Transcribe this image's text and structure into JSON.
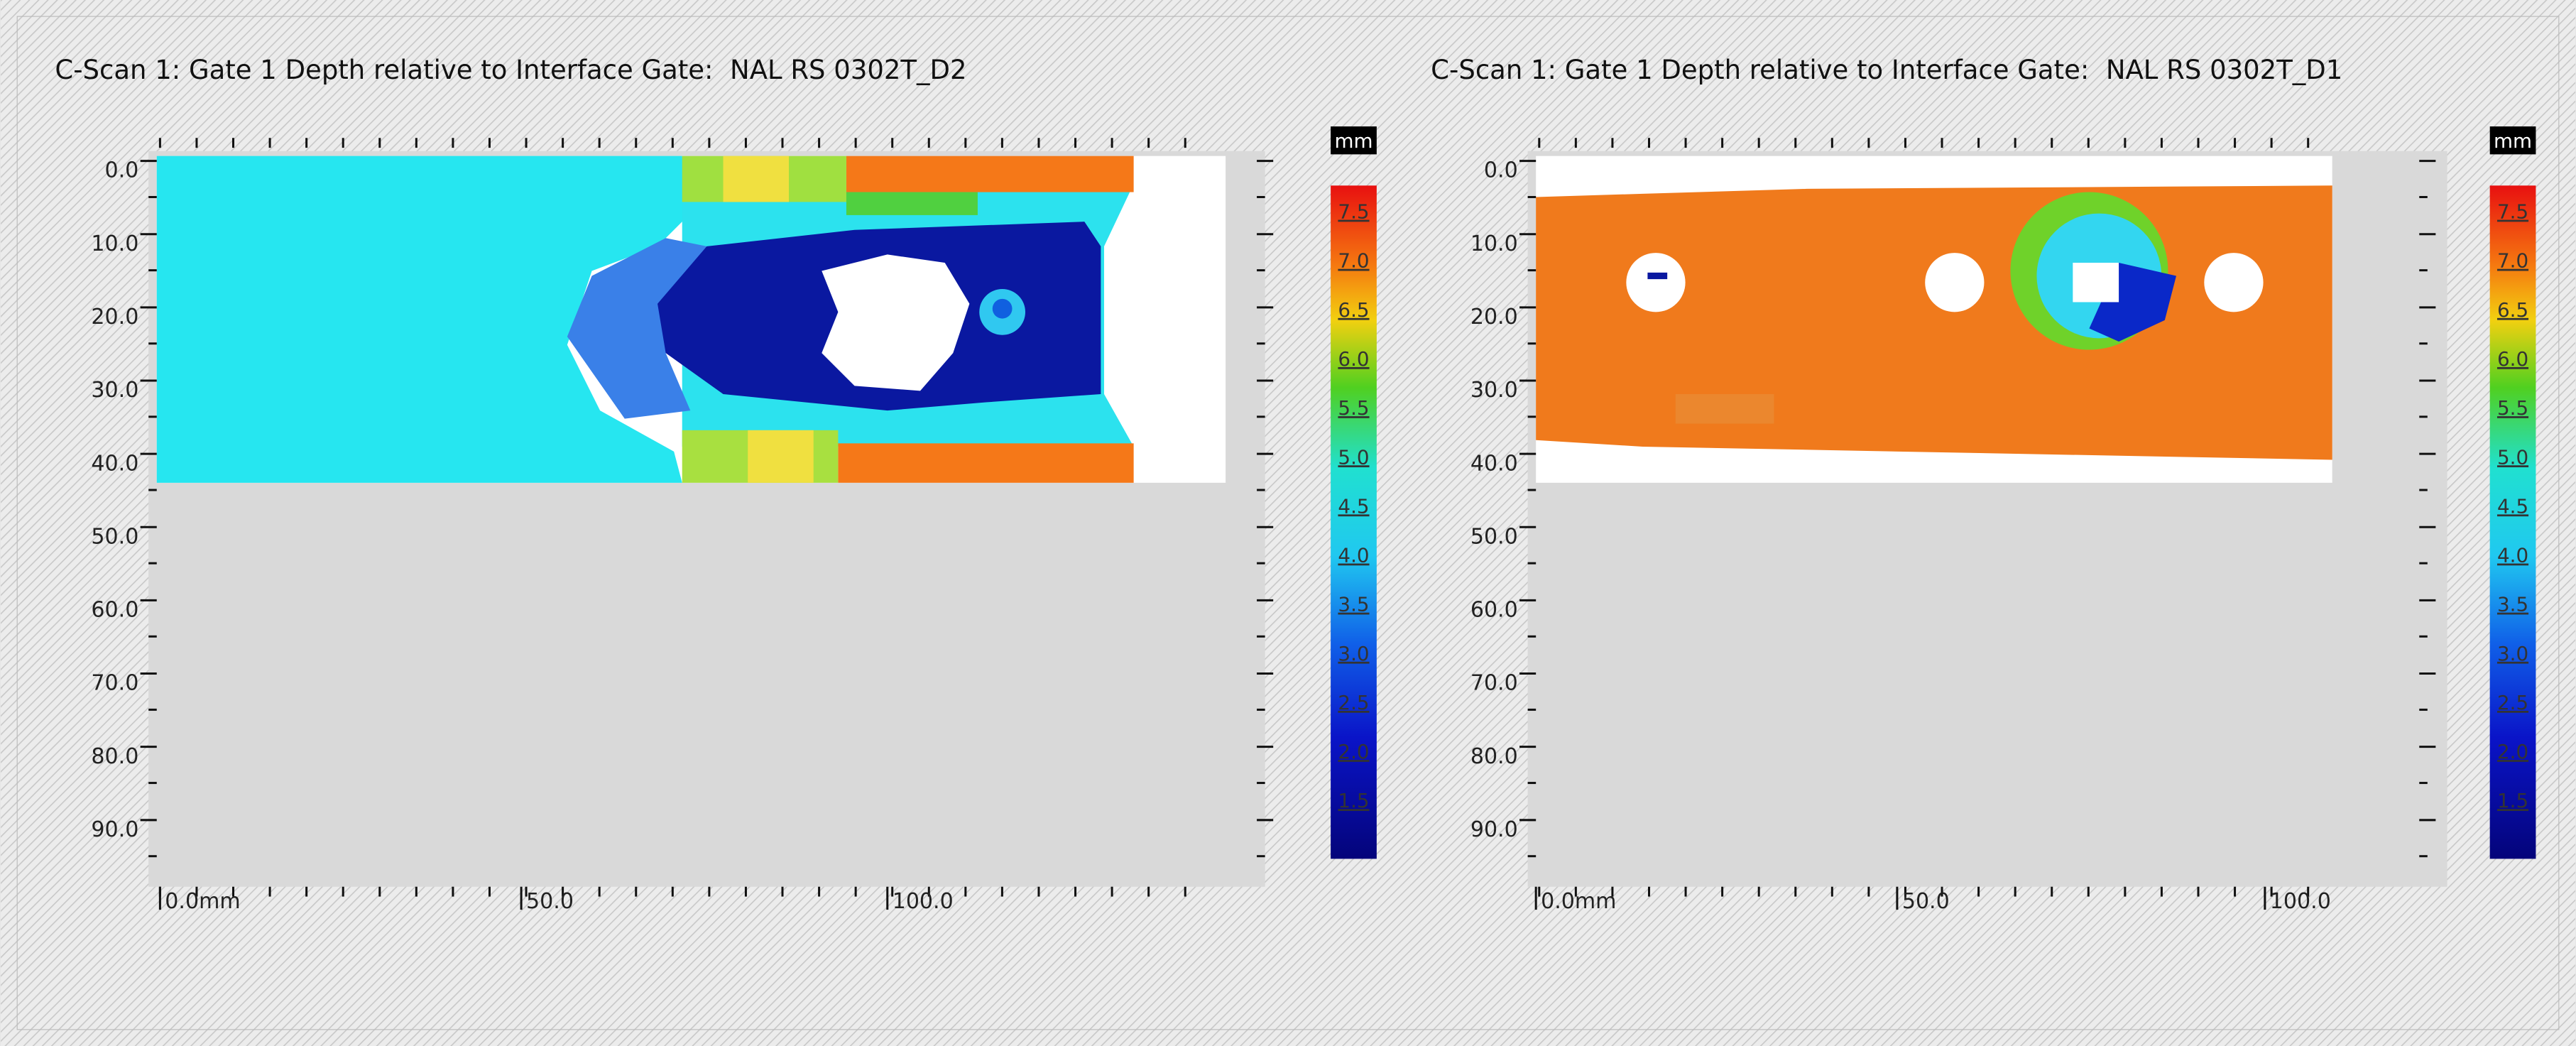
{
  "panels": [
    {
      "title": "C-Scan 1: Gate 1 Depth relative to Interface Gate:  NAL RS 0302T_D2",
      "y_labels": [
        "0.0",
        "10.0",
        "20.0",
        "30.0",
        "40.0",
        "50.0",
        "60.0",
        "70.0",
        "80.0",
        "90.0"
      ],
      "x_labels": [
        "0.0mm",
        "50.0",
        "100.0"
      ],
      "unit": "mm",
      "scale_labels": [
        "7.5",
        "7.0",
        "6.5",
        "6.0",
        "5.5",
        "5.0",
        "4.5",
        "4.0",
        "3.5",
        "3.0",
        "2.5",
        "2.0",
        "1.5"
      ]
    },
    {
      "title": "C-Scan 1: Gate 1 Depth relative to Interface Gate:  NAL RS 0302T_D1",
      "y_labels": [
        "0.0",
        "10.0",
        "20.0",
        "30.0",
        "40.0",
        "50.0",
        "60.0",
        "70.0",
        "80.0",
        "90.0"
      ],
      "x_labels": [
        "0.0mm",
        "50.0",
        "100.0"
      ],
      "unit": "mm",
      "scale_labels": [
        "7.5",
        "7.0",
        "6.5",
        "6.0",
        "5.5",
        "5.0",
        "4.5",
        "4.0",
        "3.5",
        "3.0",
        "2.5",
        "2.0",
        "1.5"
      ]
    }
  ]
}
